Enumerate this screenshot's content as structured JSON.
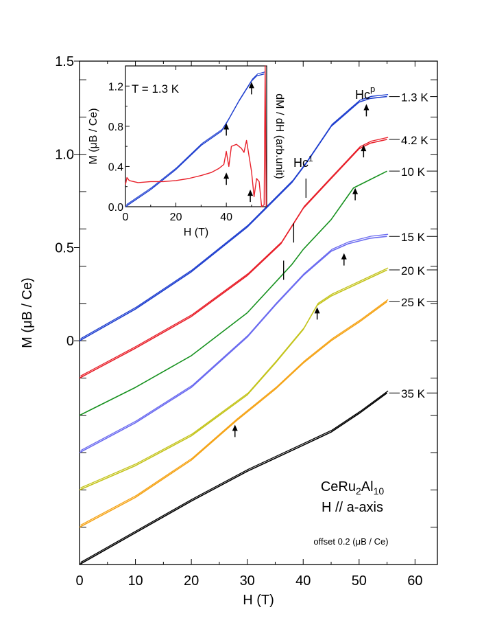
{
  "chart_data": [
    {
      "type": "line",
      "title": "",
      "xlabel": "H (T)",
      "ylabel": "M (μB / Ce)",
      "xlim": [
        0,
        64
      ],
      "ylim": [
        -1.2,
        1.5
      ],
      "x_ticks": [
        "0",
        "10",
        "20",
        "30",
        "40",
        "50",
        "60"
      ],
      "y_ticks": [
        "0",
        "0.5",
        "1.0",
        "1.5"
      ],
      "sample": "CeRu2Al10",
      "sample_sub": "2",
      "sample_sub2": "10",
      "field_dir": "H // a-axis",
      "offset_note": "offset 0.2 (μB / Ce)",
      "annot_hc1": "Hc",
      "annot_hc1_sup": "1",
      "annot_hcp": "Hc",
      "annot_hcp_sup": "p",
      "series": [
        {
          "name": "1.3 K",
          "color": "#1f3fcf",
          "offset": 0.0,
          "double": true,
          "x": [
            0,
            10,
            20,
            30,
            38,
            40.5,
            45,
            50,
            52,
            55
          ],
          "y": [
            0.0,
            0.17,
            0.37,
            0.61,
            0.85,
            0.95,
            1.15,
            1.28,
            1.3,
            1.31
          ]
        },
        {
          "name": "4.2 K",
          "color": "#e8202a",
          "offset": -0.2,
          "double": true,
          "x": [
            0,
            10,
            20,
            30,
            36,
            40,
            45,
            50,
            52,
            55
          ],
          "y": [
            0.0,
            0.16,
            0.33,
            0.55,
            0.72,
            0.91,
            1.07,
            1.23,
            1.26,
            1.28
          ]
        },
        {
          "name": "10 K",
          "color": "#16911e",
          "offset": -0.4,
          "double": false,
          "x": [
            0,
            10,
            20,
            30,
            38,
            40,
            45,
            49,
            51,
            55
          ],
          "y": [
            0.0,
            0.15,
            0.32,
            0.55,
            0.81,
            0.89,
            1.05,
            1.22,
            1.25,
            1.31
          ]
        },
        {
          "name": "15 K",
          "color": "#6b6bf0",
          "offset": -0.6,
          "double": true,
          "x": [
            0,
            10,
            20,
            30,
            35,
            40,
            45,
            48,
            52,
            55
          ],
          "y": [
            0.0,
            0.16,
            0.35,
            0.62,
            0.79,
            0.95,
            1.08,
            1.12,
            1.15,
            1.16
          ]
        },
        {
          "name": "20 K",
          "color": "#c4c41c",
          "offset": -0.8,
          "double": true,
          "x": [
            0,
            10,
            20,
            30,
            35,
            40,
            42.5,
            45,
            50,
            55
          ],
          "y": [
            0.0,
            0.13,
            0.29,
            0.51,
            0.68,
            0.86,
            0.99,
            1.04,
            1.11,
            1.18
          ]
        },
        {
          "name": "25 K",
          "color": "#f5a418",
          "offset": -1.0,
          "double": true,
          "x": [
            0,
            10,
            20,
            28,
            35,
            40,
            45,
            50,
            55
          ],
          "y": [
            0.0,
            0.16,
            0.36,
            0.57,
            0.74,
            0.88,
            1.0,
            1.1,
            1.21
          ]
        },
        {
          "name": "35 K",
          "color": "#000000",
          "offset": -1.2,
          "double": true,
          "x": [
            0,
            10,
            20,
            30,
            40,
            45,
            50,
            55
          ],
          "y": [
            0.0,
            0.17,
            0.34,
            0.5,
            0.64,
            0.71,
            0.81,
            0.92
          ]
        }
      ],
      "arrows_up": [
        {
          "x": 51.3,
          "y": 1.27
        },
        {
          "x": 50.8,
          "y": 1.05
        },
        {
          "x": 49.3,
          "y": 0.82
        },
        {
          "x": 47.3,
          "y": 0.47
        },
        {
          "x": 42.5,
          "y": 0.18
        },
        {
          "x": 27.8,
          "y": -0.45
        }
      ],
      "ticks_down": [
        {
          "x": 40.5,
          "y": 0.87
        },
        {
          "x": 38.3,
          "y": 0.63
        },
        {
          "x": 36.5,
          "y": 0.43
        }
      ]
    },
    {
      "type": "line",
      "title": "T = 1.3 K",
      "xlabel": "H (T)",
      "ylabel": "M (μB / Ce)",
      "y2label": "dM / dH (arb.unit)",
      "xlim": [
        0,
        56
      ],
      "ylim": [
        0,
        1.4
      ],
      "x_ticks": [
        "0",
        "20",
        "40"
      ],
      "y_ticks": [
        "0.0",
        "0.4",
        "0.8",
        "1.2"
      ],
      "series": [
        {
          "name": "M",
          "color": "#1f3fcf",
          "x": [
            0,
            10,
            20,
            30,
            38,
            40.5,
            45,
            50,
            52,
            55
          ],
          "y": [
            0.0,
            0.17,
            0.37,
            0.61,
            0.75,
            0.85,
            1.05,
            1.25,
            1.3,
            1.32
          ]
        },
        {
          "name": "dM/dH",
          "color": "#e8202a",
          "x": [
            0,
            0.6,
            1.5,
            5,
            10,
            15,
            20,
            25,
            30,
            34,
            37,
            39,
            40,
            41,
            42,
            44,
            46,
            47,
            48,
            50,
            51,
            52,
            53,
            54,
            55,
            55.4,
            55.8
          ],
          "y": [
            0.22,
            0.29,
            0.26,
            0.24,
            0.25,
            0.25,
            0.26,
            0.28,
            0.31,
            0.34,
            0.38,
            0.42,
            0.55,
            0.4,
            0.6,
            0.62,
            0.58,
            0.54,
            0.66,
            0.35,
            0.1,
            0.28,
            0.25,
            0.0,
            0.02,
            1.4,
            0.0
          ]
        }
      ],
      "arrows_up": [
        {
          "x": 40.0,
          "y": 0.83
        },
        {
          "x": 40.0,
          "y": 0.34
        },
        {
          "x": 50.0,
          "y": 1.24
        },
        {
          "x": 49.5,
          "y": 0.17
        }
      ]
    }
  ]
}
